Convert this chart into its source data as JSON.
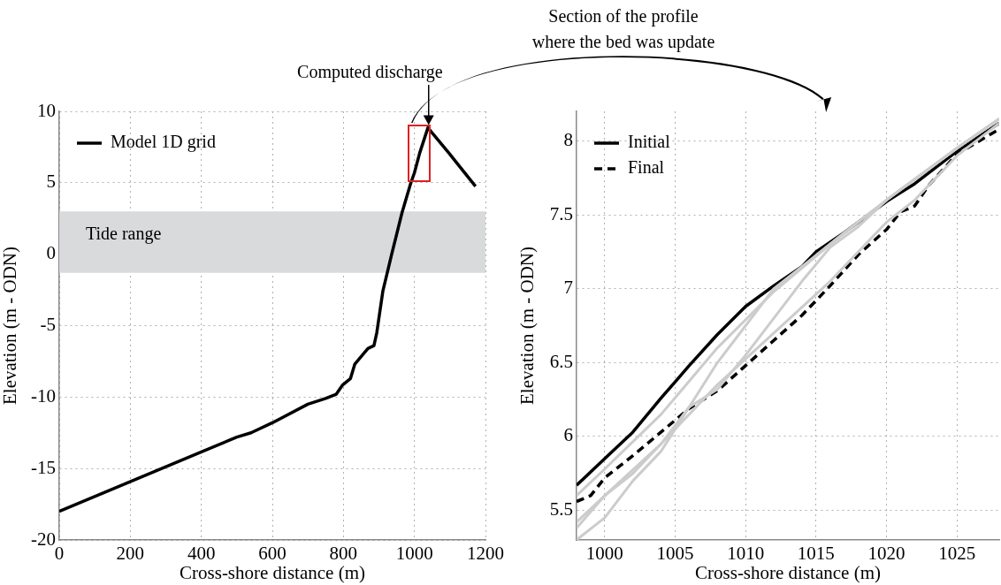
{
  "chart_data": [
    {
      "type": "line",
      "xlabel": "Cross-shore distance (m)",
      "ylabel": "Elevation (m - ODN)",
      "xlim": [
        0,
        1200
      ],
      "xticks": [
        0,
        200,
        400,
        600,
        800,
        1000,
        1200
      ],
      "ylim": [
        -20,
        10
      ],
      "yticks": [
        -20,
        -15,
        -10,
        -5,
        0,
        5,
        10
      ],
      "grid": true,
      "legend": "top left",
      "series": [
        {
          "name": "Model 1D grid",
          "color": "#000000",
          "x": [
            0,
            500,
            540,
            600,
            700,
            750,
            780,
            798,
            820,
            832,
            869,
            886,
            894,
            911,
            936,
            965,
            990,
            1000,
            1015,
            1038,
            1098,
            1172
          ],
          "values": [
            -18,
            -12.8,
            -12.5,
            -11.8,
            -10.5,
            -10.1,
            -9.8,
            -9.15,
            -8.7,
            -7.7,
            -6.6,
            -6.4,
            -5.5,
            -2.6,
            0,
            2.9,
            5,
            5.7,
            7.1,
            8.85,
            7.05,
            4.75
          ]
        }
      ],
      "bands": [
        {
          "axis": "y",
          "from": -1.3,
          "to": 3,
          "label": "Tide range",
          "color": "#d9dadb"
        }
      ],
      "annotations": [
        {
          "text": "Computed discharge",
          "x": 1040,
          "y": 8.85
        },
        "Section of the profile where the bed was update"
      ]
    },
    {
      "type": "line",
      "xlabel": "Cross-shore distance (m)",
      "ylabel": "Elevation (m - ODN)",
      "xlim": [
        998,
        1028
      ],
      "xticks": [
        1000,
        1005,
        1010,
        1015,
        1020,
        1025
      ],
      "ylim": [
        5.3,
        8.2
      ],
      "yticks": [
        5.5,
        6,
        6.5,
        7,
        7.5,
        8
      ],
      "grid": true,
      "legend": "top left",
      "series": [
        {
          "color": "#cccccc",
          "x": [
            998,
            1000,
            1004,
            1008,
            1012,
            1016,
            1020,
            1025,
            1028
          ],
          "values": [
            5.6,
            5.78,
            6.15,
            6.6,
            6.98,
            7.3,
            7.6,
            7.95,
            8.15
          ]
        },
        {
          "color": "#cccccc",
          "x": [
            998,
            1000,
            1002,
            1004,
            1006,
            1008,
            1010,
            1012,
            1014,
            1017,
            1020,
            1025,
            1028
          ],
          "values": [
            5.42,
            5.6,
            5.75,
            5.95,
            6.2,
            6.5,
            6.75,
            7,
            7.15,
            7.38,
            7.6,
            7.95,
            8.15
          ]
        },
        {
          "color": "#cccccc",
          "x": [
            998,
            1000,
            1002,
            1004,
            1006,
            1008,
            1010,
            1012,
            1014,
            1016,
            1018,
            1020,
            1025,
            1028
          ],
          "values": [
            5.3,
            5.45,
            5.7,
            5.9,
            6.2,
            6.32,
            6.55,
            6.8,
            7.05,
            7.28,
            7.42,
            7.6,
            7.95,
            8.15
          ]
        },
        {
          "color": "#cccccc",
          "x": [
            998,
            1000,
            1004,
            1008,
            1012,
            1016,
            1020,
            1022,
            1025,
            1028
          ],
          "values": [
            5.38,
            5.6,
            5.95,
            6.35,
            6.7,
            7.05,
            7.45,
            7.6,
            7.9,
            8.12
          ]
        },
        {
          "name": "Initial",
          "color": "#000000",
          "line_style": "solid",
          "x": [
            998,
            1000,
            1002,
            1004,
            1005,
            1006,
            1008,
            1010,
            1012,
            1014,
            1015,
            1017,
            1020,
            1022,
            1025,
            1028
          ],
          "values": [
            5.67,
            5.85,
            6.03,
            6.26,
            6.37,
            6.48,
            6.69,
            6.88,
            7.02,
            7.15,
            7.25,
            7.38,
            7.59,
            7.71,
            7.93,
            8.12
          ]
        },
        {
          "name": "Final",
          "color": "#000000",
          "line_style": "dashed",
          "x": [
            998,
            999,
            1000,
            1002,
            1004,
            1006,
            1008,
            1010,
            1012,
            1014,
            1016,
            1018,
            1020,
            1021,
            1022,
            1023,
            1025,
            1028
          ],
          "values": [
            5.56,
            5.6,
            5.72,
            5.87,
            6.03,
            6.19,
            6.31,
            6.48,
            6.65,
            6.82,
            7.02,
            7.23,
            7.4,
            7.52,
            7.56,
            7.7,
            7.91,
            8.08
          ]
        }
      ]
    }
  ]
}
